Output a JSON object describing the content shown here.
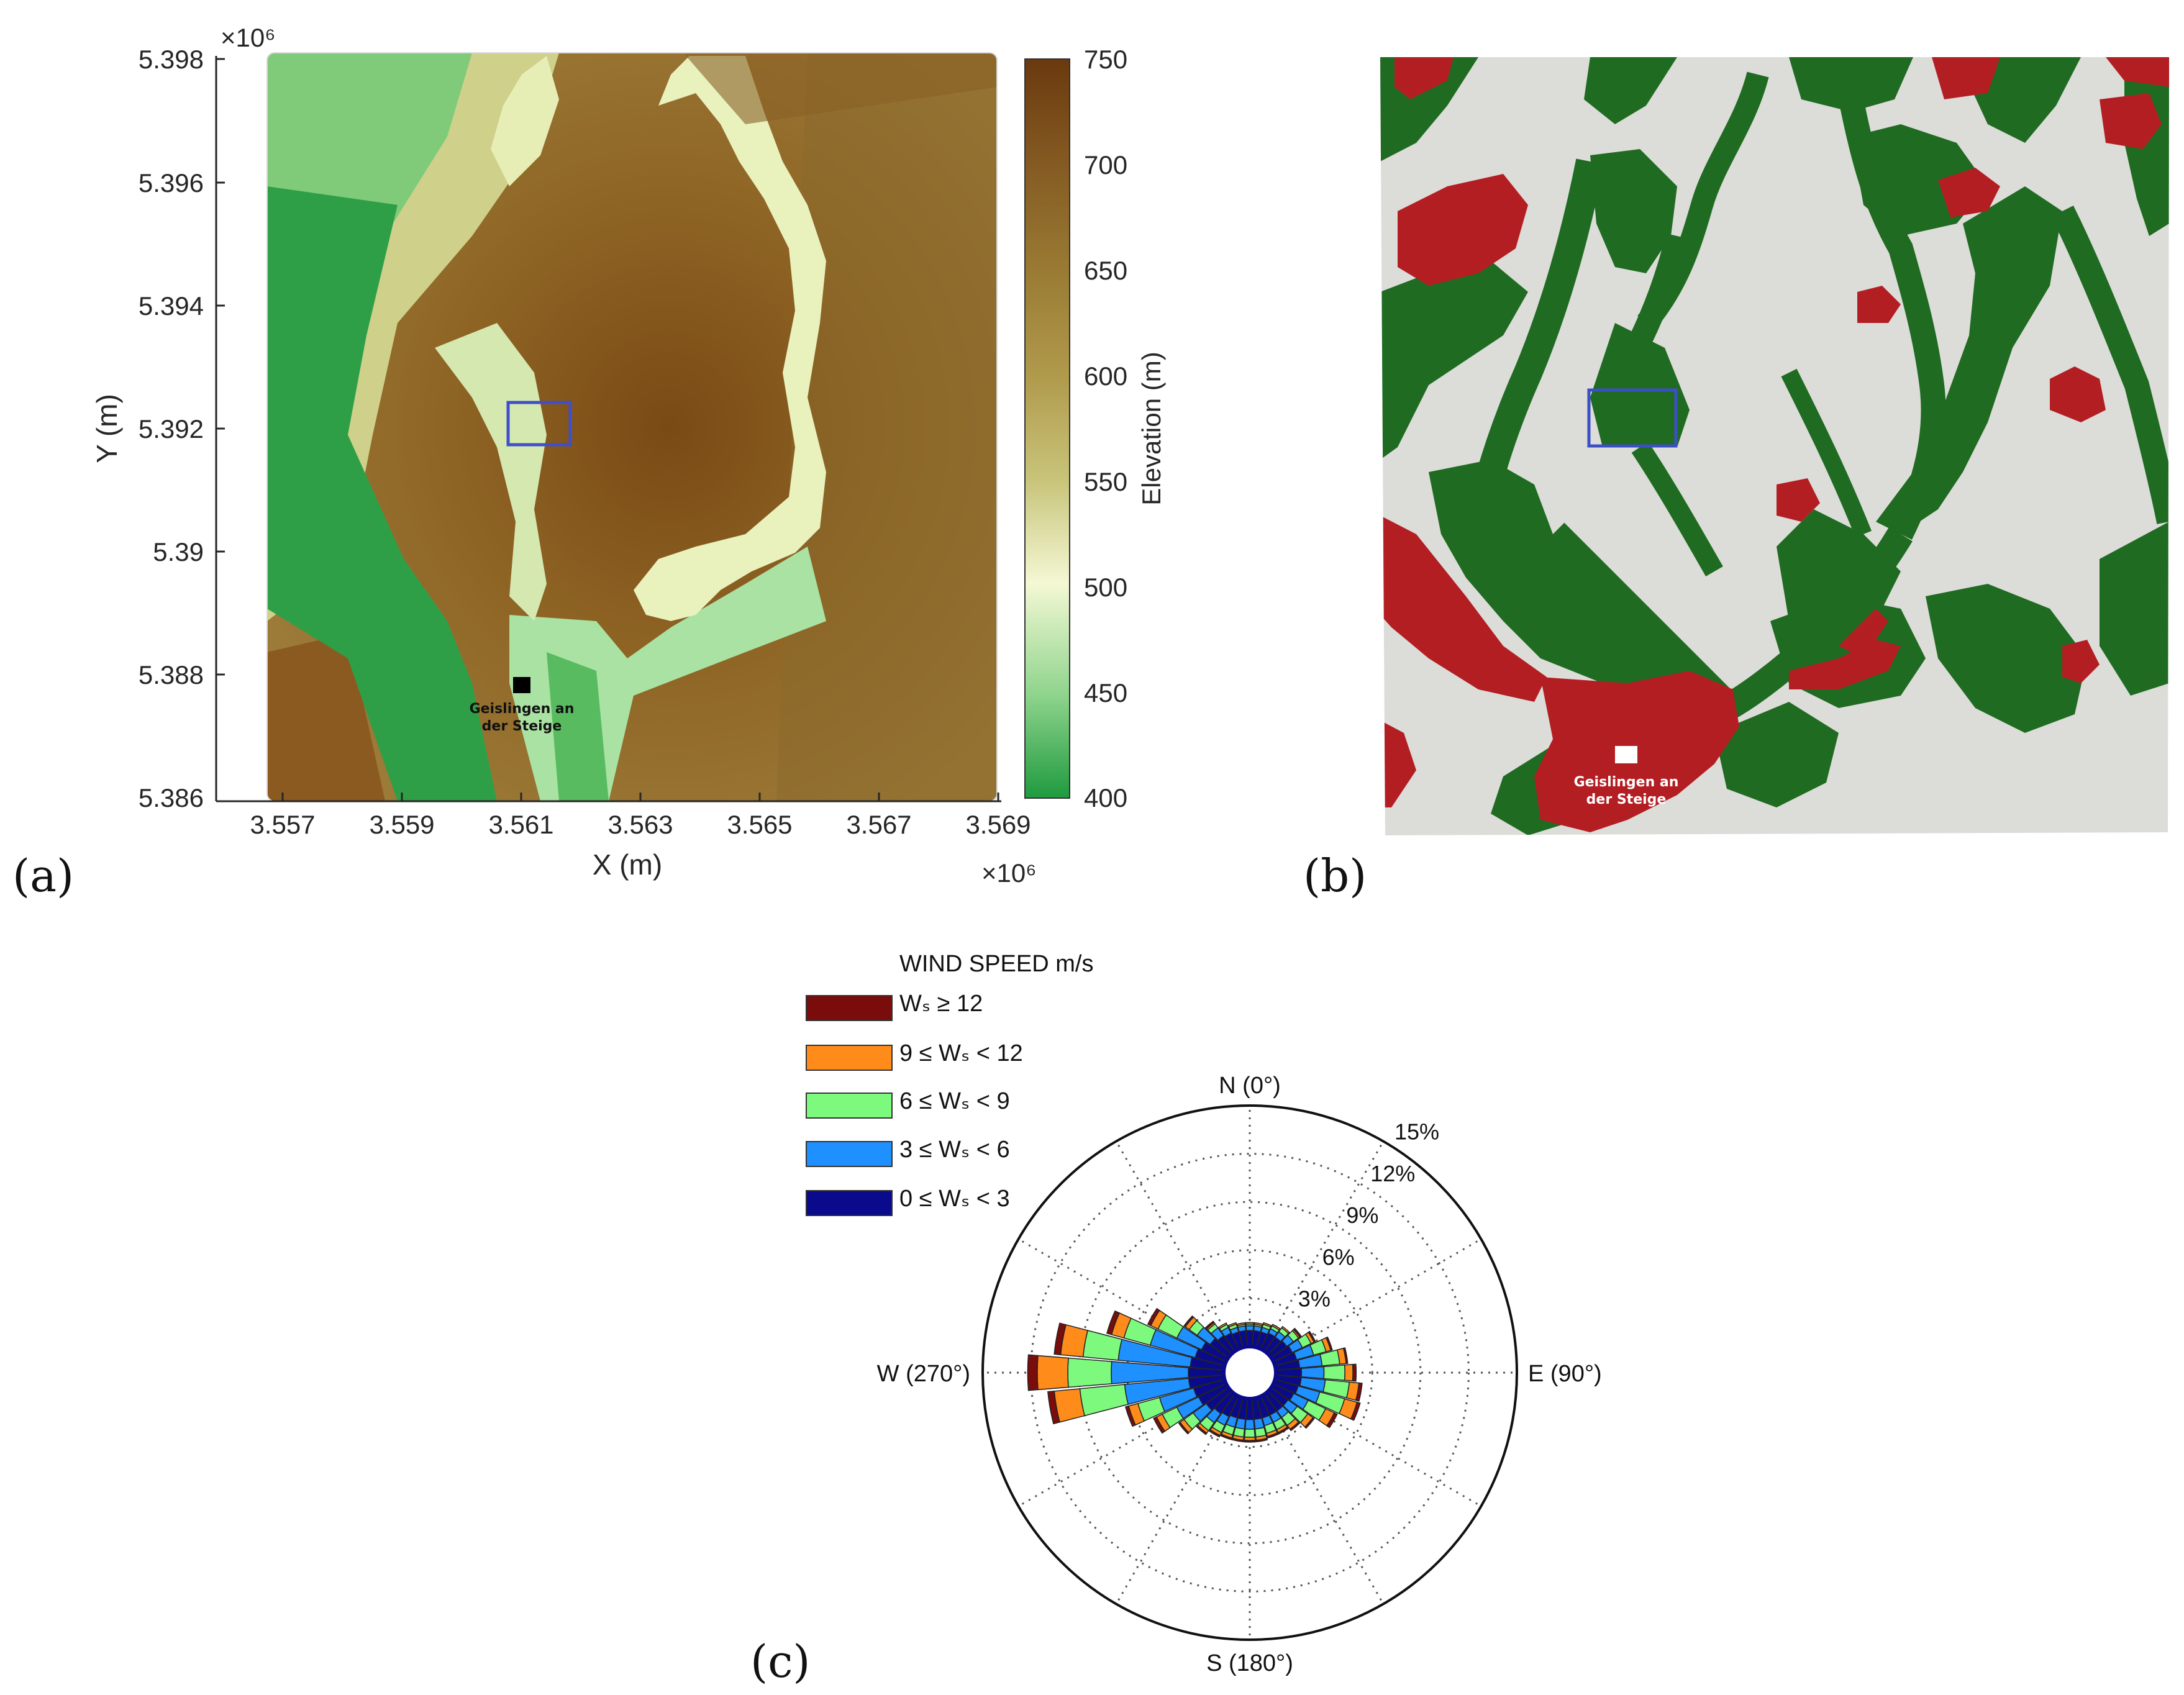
{
  "panel_a": {
    "label": "(a)",
    "x_label": "X (m)",
    "y_label": "Y (m)",
    "x_exponent": "×10⁶",
    "y_exponent": "×10⁶",
    "x_ticks": [
      "3.557",
      "3.559",
      "3.561",
      "3.563",
      "3.565",
      "3.567",
      "3.569"
    ],
    "y_ticks": [
      "5.398",
      "5.396",
      "5.394",
      "5.392",
      "5.39",
      "5.388",
      "5.386"
    ],
    "colorbar_label": "Elevation (m)",
    "colorbar_ticks": [
      "750",
      "700",
      "650",
      "600",
      "550",
      "500",
      "450",
      "400"
    ],
    "colorbar_range": [
      400,
      750
    ],
    "town_label_line1": "Geislingen an",
    "town_label_line2": "der Steige",
    "colors": {
      "valley": "#2e9a45",
      "mid": "#f2f6c9",
      "high": "#6f3d0e"
    }
  },
  "panel_b": {
    "label": "(b)",
    "town_label_line1": "Geislingen an",
    "town_label_line2": "der Steige",
    "colors": {
      "forest": "#1f6b21",
      "urban": "#b31e23",
      "terrain": "#dcdcd8",
      "study_box": "#3d4fc7"
    }
  },
  "panel_c": {
    "label": "(c)",
    "legend_title": "WIND SPEED m/s",
    "legend": [
      {
        "text": "Wₛ ≥ 12",
        "color": "#7a0c0c"
      },
      {
        "text": "9 ≤ Wₛ < 12",
        "color": "#ff8c1a"
      },
      {
        "text": "6 ≤ Wₛ < 9",
        "color": "#7dfa7d"
      },
      {
        "text": "3 ≤ Wₛ < 6",
        "color": "#1e90ff"
      },
      {
        "text": "0 ≤ Wₛ < 3",
        "color": "#0a0a8c"
      }
    ],
    "directions": {
      "n": "N (0°)",
      "e": "E (90°)",
      "s": "S (180°)",
      "w": "W (270°)"
    },
    "ring_labels": [
      "3%",
      "6%",
      "9%",
      "12%",
      "15%"
    ]
  },
  "chart_data": {
    "type": "wind-rose",
    "legend_title": "WIND SPEED m/s",
    "radial_max_percent": 15,
    "radial_ticks": [
      3,
      6,
      9,
      12,
      15
    ],
    "sector_width_deg": 10,
    "bins": [
      "0-3",
      "3-6",
      "6-9",
      "9-12",
      ">=12"
    ],
    "sectors": [
      {
        "dir": 250,
        "cum": [
          2.0,
          4.2,
          5.6,
          6.2,
          6.4
        ]
      },
      {
        "dir": 260,
        "cum": [
          2.2,
          6.2,
          9.0,
          10.6,
          11.0
        ]
      },
      {
        "dir": 270,
        "cum": [
          2.2,
          7.0,
          9.7,
          11.6,
          12.2
        ]
      },
      {
        "dir": 280,
        "cum": [
          2.1,
          6.6,
          8.8,
          10.2,
          10.6
        ]
      },
      {
        "dir": 290,
        "cum": [
          1.9,
          4.8,
          6.5,
          7.3,
          7.6
        ]
      },
      {
        "dir": 300,
        "cum": [
          1.7,
          3.4,
          4.7,
          5.2,
          5.4
        ]
      },
      {
        "dir": 310,
        "cum": [
          1.4,
          2.4,
          3.0,
          3.3,
          3.4
        ]
      },
      {
        "dir": 320,
        "cum": [
          1.2,
          1.8,
          2.1,
          2.2,
          2.3
        ]
      },
      {
        "dir": 330,
        "cum": [
          1.1,
          1.5,
          1.7,
          1.8,
          1.8
        ]
      },
      {
        "dir": 340,
        "cum": [
          1.0,
          1.3,
          1.5,
          1.6,
          1.6
        ]
      },
      {
        "dir": 350,
        "cum": [
          1.0,
          1.3,
          1.4,
          1.5,
          1.5
        ]
      },
      {
        "dir": 0,
        "cum": [
          1.0,
          1.3,
          1.4,
          1.5,
          1.5
        ]
      },
      {
        "dir": 10,
        "cum": [
          1.0,
          1.3,
          1.4,
          1.5,
          1.5
        ]
      },
      {
        "dir": 20,
        "cum": [
          1.0,
          1.3,
          1.5,
          1.6,
          1.6
        ]
      },
      {
        "dir": 30,
        "cum": [
          1.1,
          1.4,
          1.6,
          1.7,
          1.7
        ]
      },
      {
        "dir": 40,
        "cum": [
          1.1,
          1.5,
          1.8,
          1.9,
          1.9
        ]
      },
      {
        "dir": 50,
        "cum": [
          1.2,
          1.7,
          2.1,
          2.2,
          2.3
        ]
      },
      {
        "dir": 60,
        "cum": [
          1.3,
          2.0,
          2.6,
          2.8,
          2.9
        ]
      },
      {
        "dir": 70,
        "cum": [
          1.4,
          2.5,
          3.3,
          3.6,
          3.7
        ]
      },
      {
        "dir": 80,
        "cum": [
          1.5,
          2.9,
          4.0,
          4.4,
          4.5
        ]
      },
      {
        "dir": 90,
        "cum": [
          1.6,
          3.0,
          4.3,
          4.8,
          5.0
        ]
      },
      {
        "dir": 100,
        "cum": [
          1.6,
          3.1,
          4.6,
          5.2,
          5.4
        ]
      },
      {
        "dir": 110,
        "cum": [
          1.5,
          2.9,
          4.5,
          5.3,
          5.5
        ]
      },
      {
        "dir": 120,
        "cum": [
          1.4,
          2.4,
          3.6,
          4.2,
          4.4
        ]
      },
      {
        "dir": 130,
        "cum": [
          1.3,
          2.0,
          2.8,
          3.2,
          3.3
        ]
      },
      {
        "dir": 140,
        "cum": [
          1.3,
          1.8,
          2.4,
          2.7,
          2.8
        ]
      },
      {
        "dir": 150,
        "cum": [
          1.3,
          1.8,
          2.3,
          2.5,
          2.6
        ]
      },
      {
        "dir": 160,
        "cum": [
          1.3,
          1.8,
          2.3,
          2.5,
          2.6
        ]
      },
      {
        "dir": 170,
        "cum": [
          1.3,
          1.9,
          2.4,
          2.6,
          2.7
        ]
      },
      {
        "dir": 180,
        "cum": [
          1.3,
          1.9,
          2.4,
          2.6,
          2.7
        ]
      },
      {
        "dir": 190,
        "cum": [
          1.3,
          1.9,
          2.4,
          2.6,
          2.7
        ]
      },
      {
        "dir": 200,
        "cum": [
          1.3,
          1.9,
          2.4,
          2.6,
          2.7
        ]
      },
      {
        "dir": 210,
        "cum": [
          1.4,
          2.0,
          2.5,
          2.7,
          2.8
        ]
      },
      {
        "dir": 220,
        "cum": [
          1.5,
          2.2,
          2.8,
          3.0,
          3.1
        ]
      },
      {
        "dir": 230,
        "cum": [
          1.7,
          2.7,
          3.4,
          3.7,
          3.8
        ]
      },
      {
        "dir": 240,
        "cum": [
          1.9,
          3.4,
          4.4,
          4.8,
          5.0
        ]
      }
    ]
  }
}
